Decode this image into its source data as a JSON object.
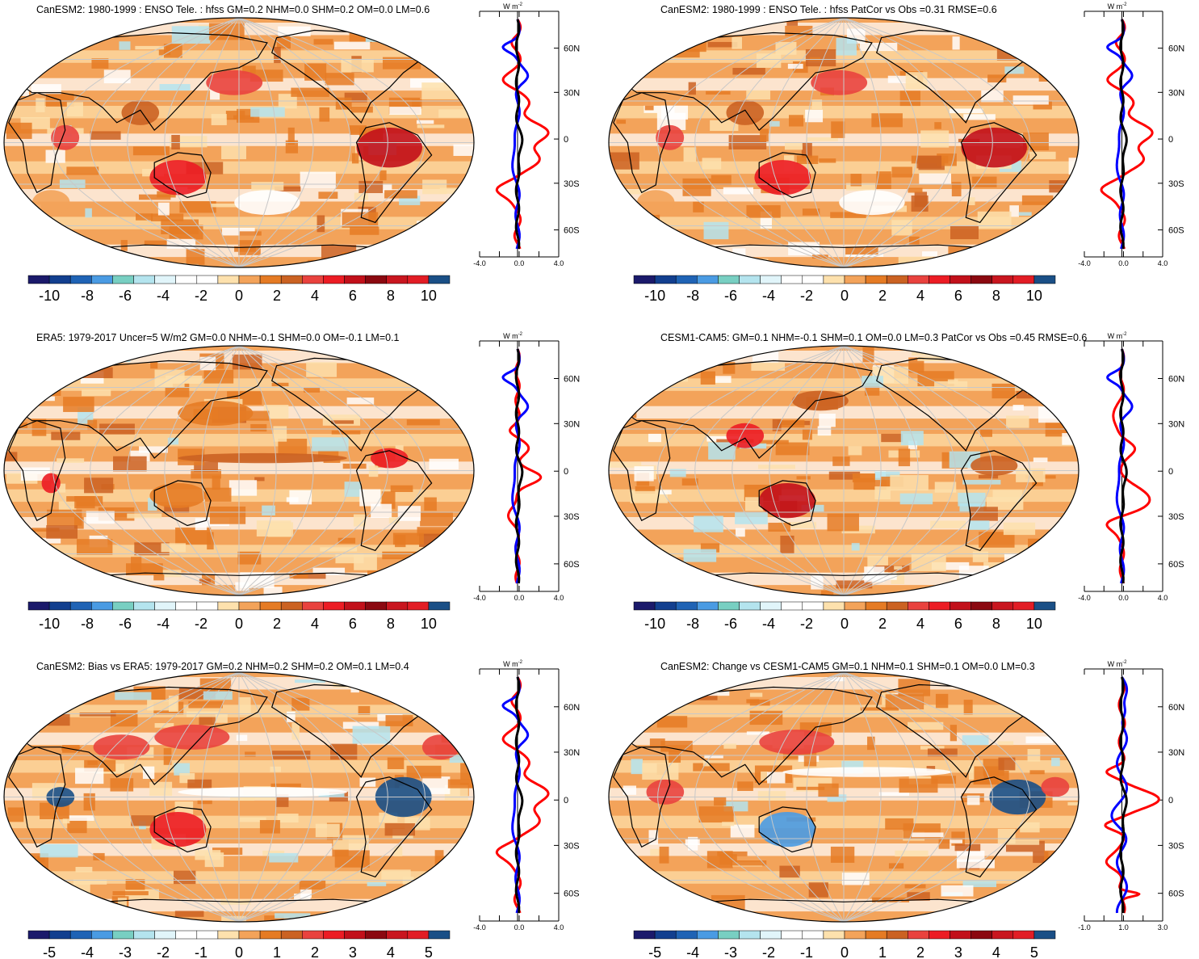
{
  "colors": {
    "scale": [
      "#1b1a6b",
      "#123f8f",
      "#1f63b5",
      "#4a9be3",
      "#78cfc2",
      "#b4e4ee",
      "#e1f5fa",
      "#ffffff",
      "#ffffff",
      "#fde1ad",
      "#f3a35a",
      "#e57b24",
      "#cb6222",
      "#e9423e",
      "#ec1c24",
      "#c2101a",
      "#8b0810",
      "#c9161f",
      "#e21d25",
      "#1a4f86"
    ],
    "line_red": "#ff0000",
    "line_blue": "#0000ff",
    "line_black": "#000000",
    "grid": "#c8c8c8"
  },
  "units": "W m",
  "units_exp": "-2",
  "panels": [
    {
      "id": "p1",
      "title": "CanESM2: 1980-1999 : ENSO Tele. : hfss GM=0.2 NHM=0.0 SHM=0.2 OM=0.0 LM=0.6",
      "colorbar_labels": [
        "-10",
        "-8",
        "-6",
        "-4",
        "-2",
        "0",
        "2",
        "4",
        "6",
        "8",
        "10"
      ],
      "profile_xticks": [
        "-4.0",
        "0.0",
        "4.0"
      ],
      "lat_labels": [
        "60N",
        "30N",
        "0",
        "30S",
        "60S"
      ]
    },
    {
      "id": "p2",
      "title": "CanESM2: 1980-1999 : ENSO Tele. : hfss PatCor vs Obs =0.31 RMSE=0.6",
      "colorbar_labels": [
        "-10",
        "-8",
        "-6",
        "-4",
        "-2",
        "0",
        "2",
        "4",
        "6",
        "8",
        "10"
      ],
      "profile_xticks": [
        "-4.0",
        "0.0",
        "4.0"
      ],
      "lat_labels": [
        "60N",
        "30N",
        "0",
        "30S",
        "60S"
      ]
    },
    {
      "id": "p3",
      "title": "ERA5: 1979-2017 Uncer=5 W/m2 GM=0.0 NHM=-0.1 SHM=0.0 OM=-0.1 LM=0.1",
      "colorbar_labels": [
        "-10",
        "-8",
        "-6",
        "-4",
        "-2",
        "0",
        "2",
        "4",
        "6",
        "8",
        "10"
      ],
      "profile_xticks": [
        "-4.0",
        "0.0",
        "4.0"
      ],
      "lat_labels": [
        "60N",
        "30N",
        "0",
        "30S",
        "60S"
      ]
    },
    {
      "id": "p4",
      "title": "CESM1-CAM5: GM=0.1 NHM=-0.1 SHM=0.1 OM=0.0 LM=0.3 PatCor vs Obs =0.45 RMSE=0.6",
      "colorbar_labels": [
        "-10",
        "-8",
        "-6",
        "-4",
        "-2",
        "0",
        "2",
        "4",
        "6",
        "8",
        "10"
      ],
      "profile_xticks": [
        "-4.0",
        "0.0",
        "4.0"
      ],
      "lat_labels": [
        "60N",
        "30N",
        "0",
        "30S",
        "60S"
      ]
    },
    {
      "id": "p5",
      "title": "CanESM2: Bias vs ERA5: 1979-2017 GM=0.2 NHM=0.2 SHM=0.2 OM=0.1 LM=0.4",
      "colorbar_labels": [
        "-5",
        "-4",
        "-3",
        "-2",
        "-1",
        "0",
        "1",
        "2",
        "3",
        "4",
        "5"
      ],
      "profile_xticks": [
        "-4.0",
        "0.0",
        "4.0"
      ],
      "lat_labels": [
        "60N",
        "30N",
        "0",
        "30S",
        "60S"
      ]
    },
    {
      "id": "p6",
      "title": "CanESM2: Change vs CESM1-CAM5 GM=0.1 NHM=0.1 SHM=0.1 OM=0.0 LM=0.3",
      "colorbar_labels": [
        "-5",
        "-4",
        "-3",
        "-2",
        "-1",
        "0",
        "1",
        "2",
        "3",
        "4",
        "5"
      ],
      "profile_xticks": [
        "-1.0",
        "1.0",
        "3.0"
      ],
      "lat_labels": [
        "60N",
        "30N",
        "0",
        "30S",
        "60S"
      ]
    }
  ]
}
